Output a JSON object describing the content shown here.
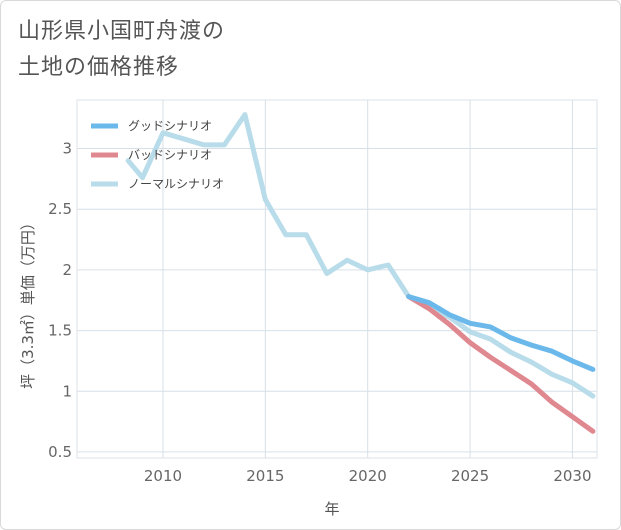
{
  "title_line1": "山形県小国町舟渡の",
  "title_line2": "土地の価格推移",
  "chart_data": {
    "type": "line",
    "title": "山形県小国町舟渡の土地の価格推移",
    "xlabel": "年",
    "ylabel": "坪（3.3㎡）単価（万円）",
    "xlim": [
      2005.8,
      2031.2
    ],
    "ylim": [
      0.45,
      3.4
    ],
    "xticks": [
      2010,
      2015,
      2020,
      2025,
      2030
    ],
    "yticks": [
      0.5,
      1,
      1.5,
      2,
      2.5,
      3
    ],
    "ytick_labels": [
      "0.5",
      "1",
      "1.5",
      "2",
      "2.5",
      "3"
    ],
    "legend_position": "top-left",
    "series": [
      {
        "name": "グッドシナリオ",
        "color": "#6bb8ea",
        "x": [
          2022,
          2023,
          2024,
          2025,
          2026,
          2027,
          2028,
          2029,
          2030,
          2031
        ],
        "y": [
          1.78,
          1.73,
          1.63,
          1.56,
          1.53,
          1.44,
          1.38,
          1.33,
          1.25,
          1.18
        ]
      },
      {
        "name": "バッドシナリオ",
        "color": "#e08890",
        "x": [
          2022,
          2023,
          2024,
          2025,
          2026,
          2027,
          2028,
          2029,
          2030,
          2031
        ],
        "y": [
          1.78,
          1.68,
          1.55,
          1.4,
          1.28,
          1.17,
          1.06,
          0.91,
          0.79,
          0.67
        ]
      },
      {
        "name": "ノーマルシナリオ",
        "color": "#b8dcea",
        "x": [
          2008.3,
          2009,
          2010,
          2011,
          2012,
          2013,
          2014,
          2015,
          2016,
          2017,
          2018,
          2019,
          2020,
          2021,
          2022,
          2023,
          2024,
          2025,
          2026,
          2027,
          2028,
          2029,
          2030,
          2031
        ],
        "y": [
          2.9,
          2.76,
          3.13,
          3.08,
          3.03,
          3.03,
          3.28,
          2.58,
          2.29,
          2.29,
          1.97,
          2.08,
          2.0,
          2.04,
          1.78,
          1.69,
          1.61,
          1.49,
          1.43,
          1.32,
          1.24,
          1.14,
          1.07,
          0.96
        ]
      }
    ]
  }
}
